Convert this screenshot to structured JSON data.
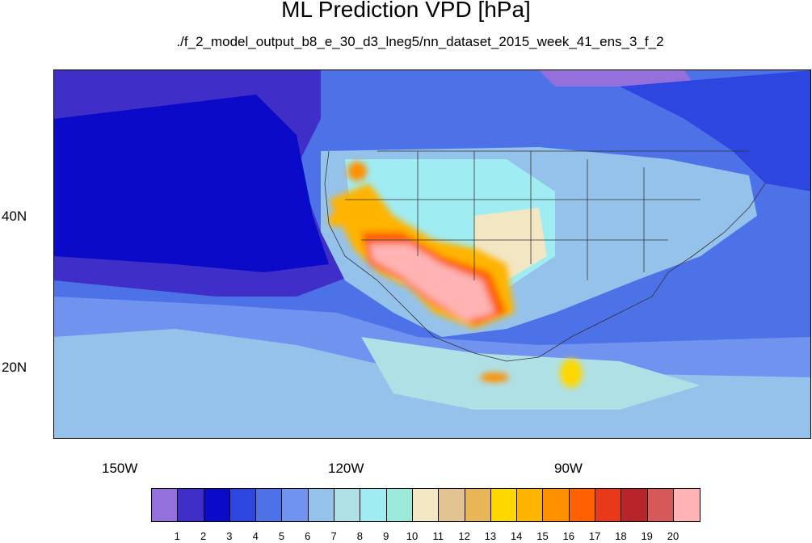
{
  "title": "ML Prediction VPD [hPa]",
  "subtitle": "./f_2_model_output_b8_e_30_d3_lneg5/nn_dataset_2015_week_41_ens_3_f_2",
  "axes": {
    "x_ticks": [
      "150W",
      "120W",
      "90W"
    ],
    "y_ticks": [
      "40N",
      "20N"
    ]
  },
  "colorbar": {
    "labels": [
      "1",
      "2",
      "3",
      "4",
      "5",
      "6",
      "7",
      "8",
      "9",
      "10",
      "11",
      "12",
      "13",
      "14",
      "15",
      "16",
      "17",
      "18",
      "19",
      "20"
    ],
    "colors": [
      "#9370db",
      "#3f2fc8",
      "#0a0ac8",
      "#2e46e0",
      "#4d72e8",
      "#6f93ee",
      "#95c2ea",
      "#aee0e6",
      "#9fecf2",
      "#9beadc",
      "#f2e6c3",
      "#e3c391",
      "#e9b657",
      "#ffd800",
      "#ffb400",
      "#ff9000",
      "#ff6000",
      "#e83a1a",
      "#b72528",
      "#d65858",
      "#ffb3b3"
    ]
  },
  "chart_data": {
    "type": "heatmap",
    "title": "ML Prediction VPD [hPa]",
    "subtitle": "./f_2_model_output_b8_e_30_d3_lneg5/nn_dataset_2015_week_41_ens_3_f_2",
    "variable": "VPD",
    "units": "hPa",
    "lon_ticks": [
      "150W",
      "120W",
      "90W"
    ],
    "lat_ticks": [
      "40N",
      "20N"
    ],
    "color_levels": [
      1,
      2,
      3,
      4,
      5,
      6,
      7,
      8,
      9,
      10,
      11,
      12,
      13,
      14,
      15,
      16,
      17,
      18,
      19,
      20
    ]
  }
}
